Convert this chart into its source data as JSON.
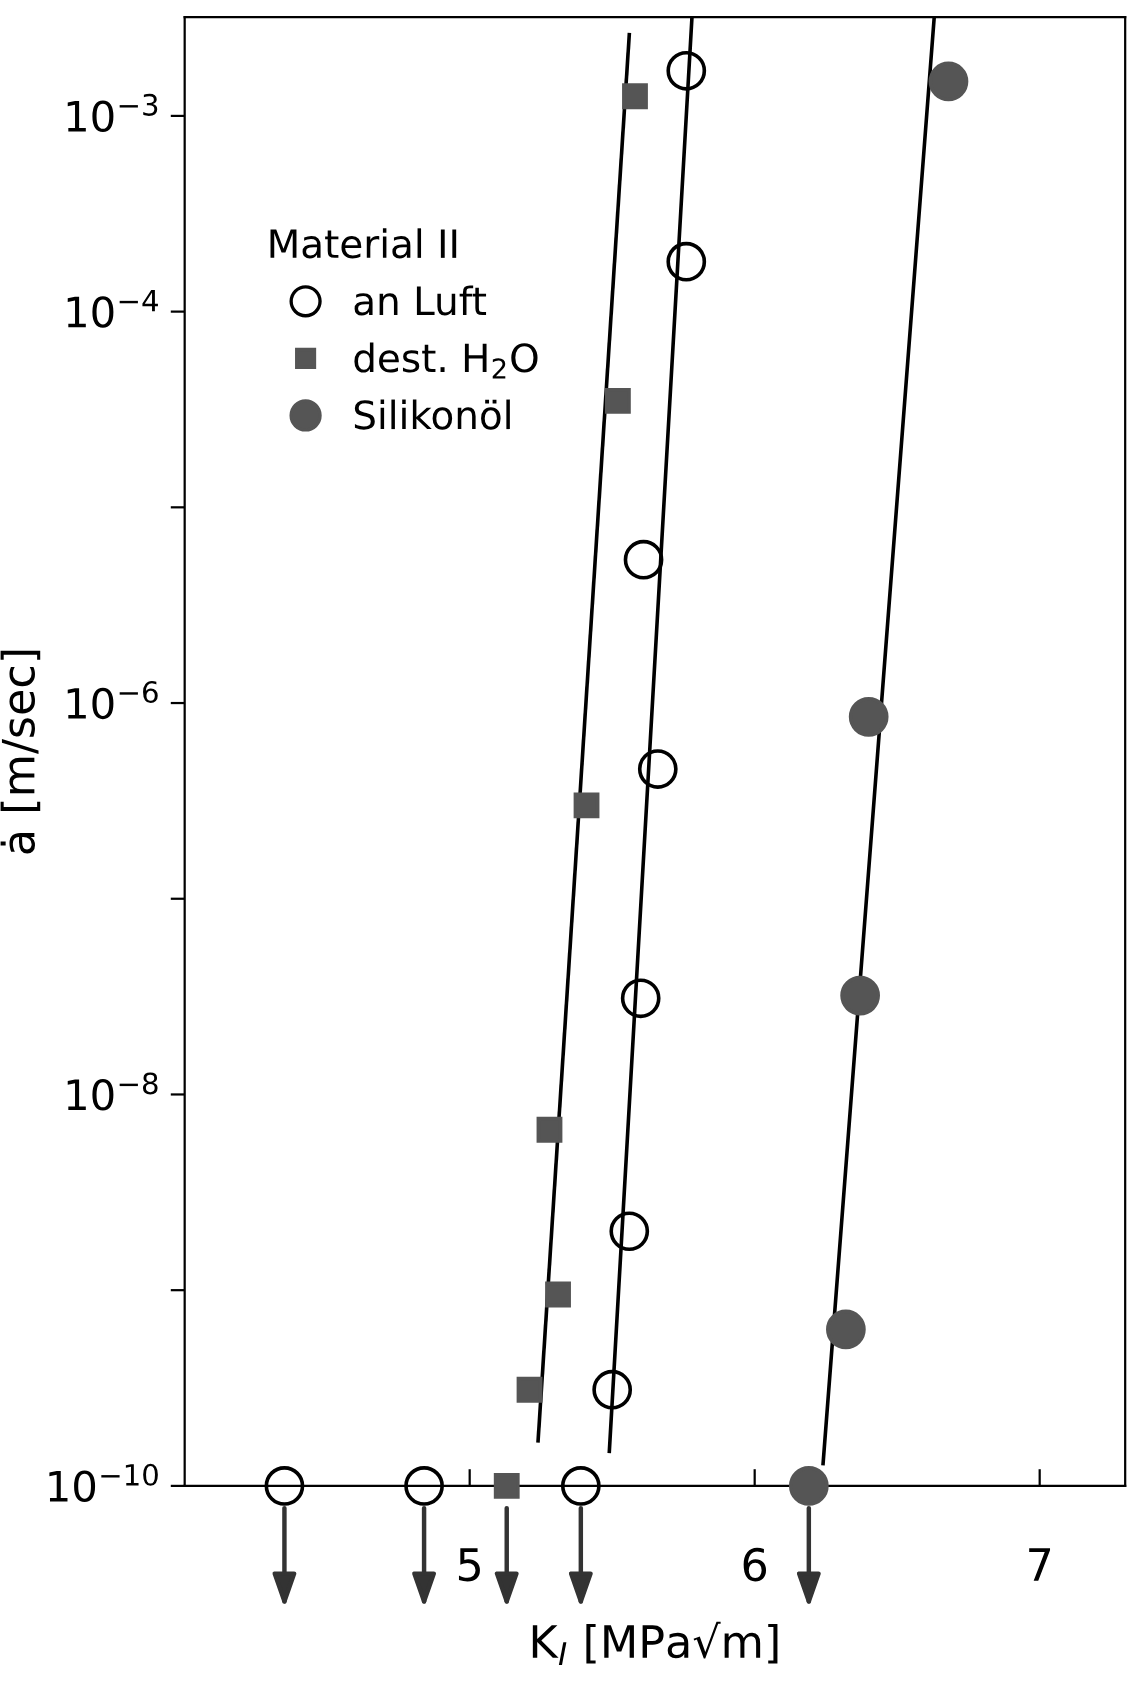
{
  "chart_data": {
    "type": "scatter",
    "xlabel": "K$_{I}$ [MPa√m]",
    "ylabel": "ȧ [m/sec]",
    "legend_title": "Material II",
    "legend": "top left",
    "log": "y",
    "grid": false,
    "xlim": [
      4.0,
      7.3
    ],
    "xticks": [
      5,
      6,
      7
    ],
    "ylim": [
      1e-10,
      0.0032
    ],
    "yticks": [
      {
        "value": 1e-10,
        "label": "10$^{−10}$"
      },
      {
        "value": 1e-09,
        "label": null
      },
      {
        "value": 1e-08,
        "label": "10$^{−8}$"
      },
      {
        "value": 1e-07,
        "label": null
      },
      {
        "value": 1e-06,
        "label": "10$^{−6}$"
      },
      {
        "value": 1e-05,
        "label": null
      },
      {
        "value": 0.0001,
        "label": "10$^{−4}$"
      },
      {
        "value": 0.001,
        "label": "10$^{−3}$"
      }
    ],
    "series": [
      {
        "name": "an Luft",
        "marker": "circle",
        "color": "#000000",
        "x": [
          5.76,
          5.76,
          5.61,
          5.66,
          5.6,
          5.56,
          5.5,
          4.35,
          4.84,
          5.39
        ],
        "values": [
          0.0017,
          0.00018,
          5.4e-06,
          4.6e-07,
          3.1e-08,
          2e-09,
          3.1e-10,
          1e-10,
          1e-10,
          1e-10
        ]
      },
      {
        "name": "dest. H$_{2}$O",
        "marker": "square",
        "color": "#555555",
        "x": [
          5.58,
          5.52,
          5.41,
          5.28,
          5.31,
          5.21,
          5.13
        ],
        "values": [
          0.00126,
          3.5e-05,
          3e-07,
          6.6e-09,
          9.5e-10,
          3.1e-10,
          1e-10
        ]
      },
      {
        "name": "Silikonöl",
        "marker": "circle",
        "color": "#555555",
        "x": [
          6.68,
          6.4,
          6.37,
          6.32,
          6.19
        ],
        "values": [
          0.0015,
          8.5e-07,
          3.2e-08,
          6.3e-10,
          1e-10
        ]
      },
      {
        "type": "line",
        "color": "#000000",
        "x": [
          5.24,
          5.56
        ],
        "values": [
          1.7e-10,
          0.0026
        ]
      },
      {
        "type": "line",
        "color": "#000000",
        "x": [
          5.49,
          5.78
        ],
        "values": [
          1.5e-10,
          0.0032
        ]
      },
      {
        "type": "line",
        "color": "#000000",
        "x": [
          6.24,
          6.63
        ],
        "values": [
          1.3e-10,
          0.0032
        ]
      }
    ]
  }
}
